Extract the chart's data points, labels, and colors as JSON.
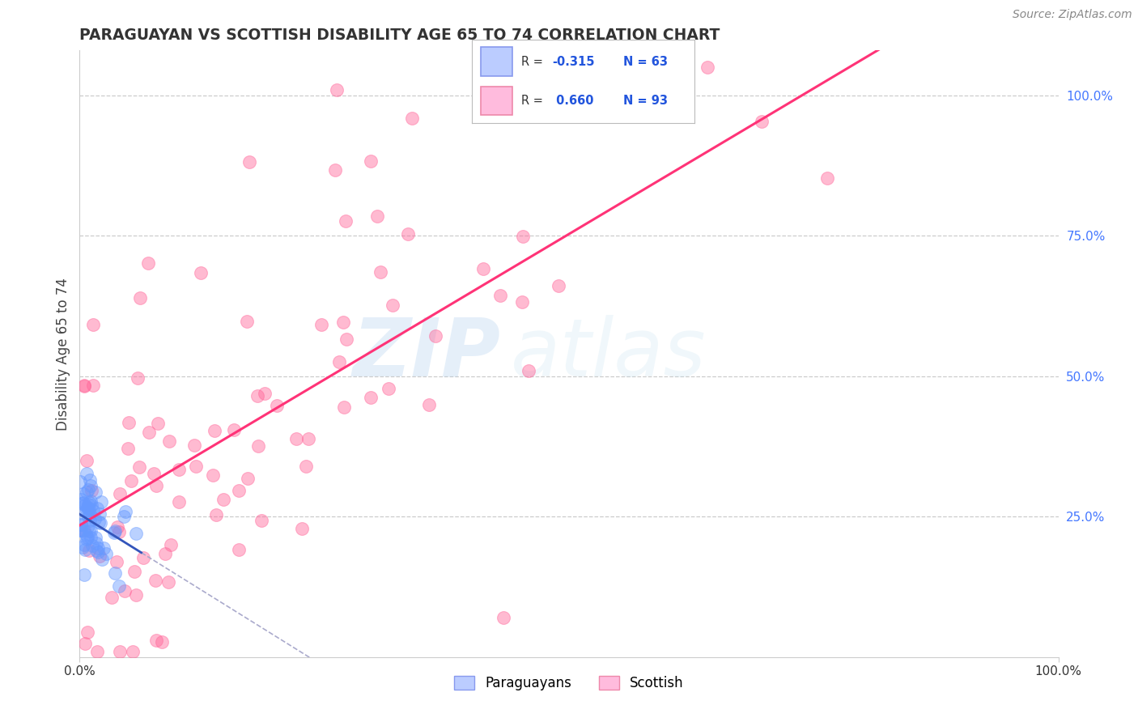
{
  "title": "PARAGUAYAN VS SCOTTISH DISABILITY AGE 65 TO 74 CORRELATION CHART",
  "source": "Source: ZipAtlas.com",
  "ylabel": "Disability Age 65 to 74",
  "right_ytick_labels": [
    "25.0%",
    "50.0%",
    "75.0%",
    "100.0%"
  ],
  "right_ytick_values": [
    0.25,
    0.5,
    0.75,
    1.0
  ],
  "legend_paraguayan": "Paraguayans",
  "legend_scottish": "Scottish",
  "paraguayan_color": "#6699FF",
  "scottish_color": "#FF6699",
  "paraguayan_R": -0.315,
  "scottish_R": 0.66,
  "paraguayan_N": 63,
  "scottish_N": 93,
  "watermark_zip": "ZIP",
  "watermark_atlas": "atlas",
  "background_color": "#FFFFFF",
  "grid_color": "#CCCCCC"
}
